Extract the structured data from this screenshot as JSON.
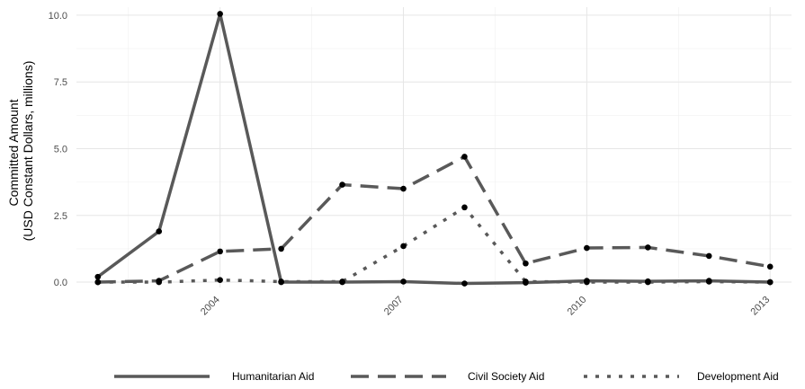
{
  "chart_data": {
    "type": "line",
    "title": "",
    "xlabel": "",
    "ylabel": [
      "Committed Amount",
      "(USD Constant Dollars, millions)"
    ],
    "x": [
      2002,
      2003,
      2004,
      2005,
      2006,
      2007,
      2008,
      2009,
      2010,
      2011,
      2012,
      2013
    ],
    "xticks": [
      2004,
      2007,
      2010,
      2013
    ],
    "xticks_labels": [
      "2004",
      "2007",
      "2010",
      "2013"
    ],
    "yticks": [
      0,
      2.5,
      5,
      7.5,
      10
    ],
    "yticks_labels": [
      "0.0",
      "2.5",
      "5.0",
      "7.5",
      "10.0"
    ],
    "xlim": [
      2002,
      2013
    ],
    "ylim": [
      -0.2,
      10.3
    ],
    "grid": true,
    "legend_position": "bottom",
    "series_color": "#595959",
    "point_color": "#000000",
    "series": [
      {
        "name": "Humanitarian Aid",
        "style": "solid",
        "values": [
          0.2,
          1.9,
          10.05,
          0.0,
          0.0,
          0.02,
          -0.05,
          -0.02,
          0.05,
          0.03,
          0.05,
          0.0
        ]
      },
      {
        "name": "Civil Society Aid",
        "style": "dashed",
        "values": [
          0.0,
          0.05,
          1.15,
          1.25,
          3.65,
          3.5,
          4.7,
          0.7,
          1.28,
          1.3,
          0.98,
          0.58
        ]
      },
      {
        "name": "Development Aid",
        "style": "dotted",
        "values": [
          0.0,
          0.0,
          0.08,
          0.02,
          0.02,
          1.35,
          2.8,
          0.02,
          0.0,
          0.0,
          0.02,
          0.0
        ]
      }
    ]
  }
}
